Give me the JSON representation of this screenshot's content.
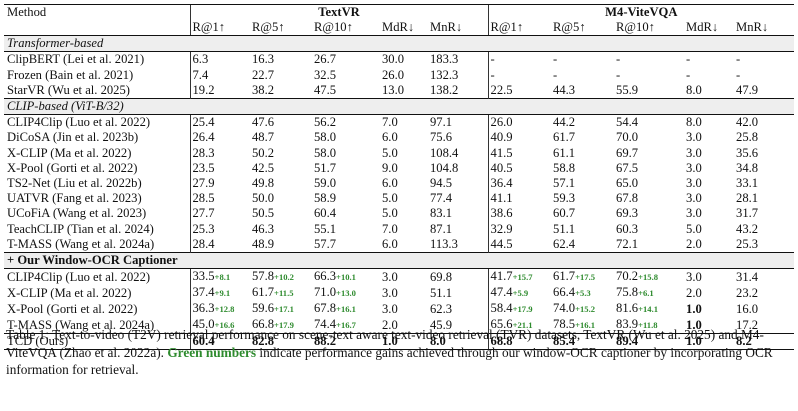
{
  "header": {
    "method": "Method",
    "group_a": "TextVR",
    "group_b": "M4-ViteVQA",
    "metrics": [
      "R@1↑",
      "R@5↑",
      "R@10↑",
      "MdR↓",
      "MnR↓"
    ]
  },
  "sections": [
    {
      "title": "Transformer-based",
      "rows": [
        {
          "method": "ClipBERT (Lei et al. 2021)",
          "a": [
            "6.3",
            "16.3",
            "26.7",
            "30.0",
            "183.3"
          ],
          "b": [
            "-",
            "-",
            "-",
            "-",
            "-"
          ]
        },
        {
          "method": "Frozen (Bain et al. 2021)",
          "a": [
            "7.4",
            "22.7",
            "32.5",
            "26.0",
            "132.3"
          ],
          "b": [
            "-",
            "-",
            "-",
            "-",
            "-"
          ]
        },
        {
          "method": "StarVR (Wu et al. 2025)",
          "a": [
            "19.2",
            "38.2",
            "47.5",
            "13.0",
            "138.2"
          ],
          "b": [
            "22.5",
            "44.3",
            "55.9",
            "8.0",
            "47.9"
          ]
        }
      ]
    },
    {
      "title": "CLIP-based (ViT-B/32)",
      "rows": [
        {
          "method": "CLIP4Clip (Luo et al. 2022)",
          "a": [
            "25.4",
            "47.6",
            "56.2",
            "7.0",
            "97.1"
          ],
          "b": [
            "26.0",
            "44.2",
            "54.4",
            "8.0",
            "42.0"
          ]
        },
        {
          "method": "DiCoSA (Jin et al. 2023b)",
          "a": [
            "26.4",
            "48.7",
            "58.0",
            "6.0",
            "75.6"
          ],
          "b": [
            "40.9",
            "61.7",
            "70.0",
            "3.0",
            "25.8"
          ]
        },
        {
          "method": "X-CLIP (Ma et al. 2022)",
          "a": [
            "28.3",
            "50.2",
            "58.0",
            "5.0",
            "108.4"
          ],
          "b": [
            "41.5",
            "61.1",
            "69.7",
            "3.0",
            "35.6"
          ]
        },
        {
          "method": "X-Pool (Gorti et al. 2022)",
          "a": [
            "23.5",
            "42.5",
            "51.7",
            "9.0",
            "104.8"
          ],
          "b": [
            "40.5",
            "58.8",
            "67.5",
            "3.0",
            "34.8"
          ]
        },
        {
          "method": "TS2-Net (Liu et al. 2022b)",
          "a": [
            "27.9",
            "49.8",
            "59.0",
            "6.0",
            "94.5"
          ],
          "b": [
            "36.4",
            "57.1",
            "65.0",
            "3.0",
            "33.1"
          ]
        },
        {
          "method": "UATVR (Fang et al. 2023)",
          "a": [
            "28.5",
            "50.0",
            "58.9",
            "5.0",
            "77.4"
          ],
          "b": [
            "41.1",
            "59.3",
            "67.8",
            "3.0",
            "28.1"
          ]
        },
        {
          "method": "UCoFiA (Wang et al. 2023)",
          "a": [
            "27.7",
            "50.5",
            "60.4",
            "5.0",
            "83.1"
          ],
          "b": [
            "38.6",
            "60.7",
            "69.3",
            "3.0",
            "31.7"
          ]
        },
        {
          "method": "TeachCLIP (Tian et al. 2024)",
          "a": [
            "25.3",
            "46.3",
            "55.1",
            "7.0",
            "87.1"
          ],
          "b": [
            "32.9",
            "51.1",
            "60.3",
            "5.0",
            "43.2"
          ]
        },
        {
          "method": "T-MASS (Wang et al. 2024a)",
          "a": [
            "28.4",
            "48.9",
            "57.7",
            "6.0",
            "113.3"
          ],
          "b": [
            "44.5",
            "62.4",
            "72.1",
            "2.0",
            "25.3"
          ]
        }
      ]
    }
  ],
  "ours_section": {
    "title": "+ Our Window-OCR Captioner",
    "rows": [
      {
        "method": "CLIP4Clip (Luo et al. 2022)",
        "a": [
          {
            "v": "33.5",
            "g": "+8.1"
          },
          {
            "v": "57.8",
            "g": "+10.2"
          },
          {
            "v": "66.3",
            "g": "+10.1"
          },
          {
            "v": "3.0"
          },
          {
            "v": "69.8"
          }
        ],
        "b": [
          {
            "v": "41.7",
            "g": "+15.7"
          },
          {
            "v": "61.7",
            "g": "+17.5"
          },
          {
            "v": "70.2",
            "g": "+15.8"
          },
          {
            "v": "3.0"
          },
          {
            "v": "31.4"
          }
        ]
      },
      {
        "method": "X-CLIP (Ma et al. 2022)",
        "a": [
          {
            "v": "37.4",
            "g": "+9.1"
          },
          {
            "v": "61.7",
            "g": "+11.5"
          },
          {
            "v": "71.0",
            "g": "+13.0"
          },
          {
            "v": "3.0"
          },
          {
            "v": "51.1"
          }
        ],
        "b": [
          {
            "v": "47.4",
            "g": "+5.9"
          },
          {
            "v": "66.4",
            "g": "+5.3"
          },
          {
            "v": "75.8",
            "g": "+6.1"
          },
          {
            "v": "2.0"
          },
          {
            "v": "23.2"
          }
        ]
      },
      {
        "method": "X-Pool (Gorti et al. 2022)",
        "a": [
          {
            "v": "36.3",
            "g": "+12.8"
          },
          {
            "v": "59.6",
            "g": "+17.1"
          },
          {
            "v": "67.8",
            "g": "+16.1"
          },
          {
            "v": "3.0"
          },
          {
            "v": "62.3"
          }
        ],
        "b": [
          {
            "v": "58.4",
            "g": "+17.9"
          },
          {
            "v": "74.0",
            "g": "+15.2"
          },
          {
            "v": "81.6",
            "g": "+14.1"
          },
          {
            "v": "1.0",
            "bold": true
          },
          {
            "v": "16.0"
          }
        ]
      },
      {
        "method": "T-MASS (Wang et al. 2024a)",
        "a": [
          {
            "v": "45.0",
            "g": "+16.6"
          },
          {
            "v": "66.8",
            "g": "+17.9"
          },
          {
            "v": "74.4",
            "g": "+16.7"
          },
          {
            "v": "2.0"
          },
          {
            "v": "45.9"
          }
        ],
        "b": [
          {
            "v": "65.6",
            "g": "+21.1"
          },
          {
            "v": "78.5",
            "g": "+16.1"
          },
          {
            "v": "83.9",
            "g": "+11.8"
          },
          {
            "v": "1.0",
            "bold": true
          },
          {
            "v": "17.2"
          }
        ]
      }
    ]
  },
  "final_row": {
    "method": "TCD (Ours)",
    "a": [
      "60.4",
      "82.8",
      "88.2",
      "1.0",
      "8.0"
    ],
    "b": [
      "68.8",
      "85.4",
      "89.4",
      "1.0",
      "8.2"
    ]
  },
  "caption": {
    "part1": "Table 1: Text-to-video (T2V) retrieval performance on scene-text aware text-video retrieval (TVR) datasets, TextVR (Wu et al. 2025) and M4-ViteVQA (Zhao et al. 2022a). ",
    "highlight": "Green numbers",
    "part2": " indicate performance gains achieved through our window-OCR captioner by incorporating OCR information for retrieval."
  },
  "colors": {
    "gain_green": "#2e8b2e",
    "group_bg": "#eeeeee"
  }
}
